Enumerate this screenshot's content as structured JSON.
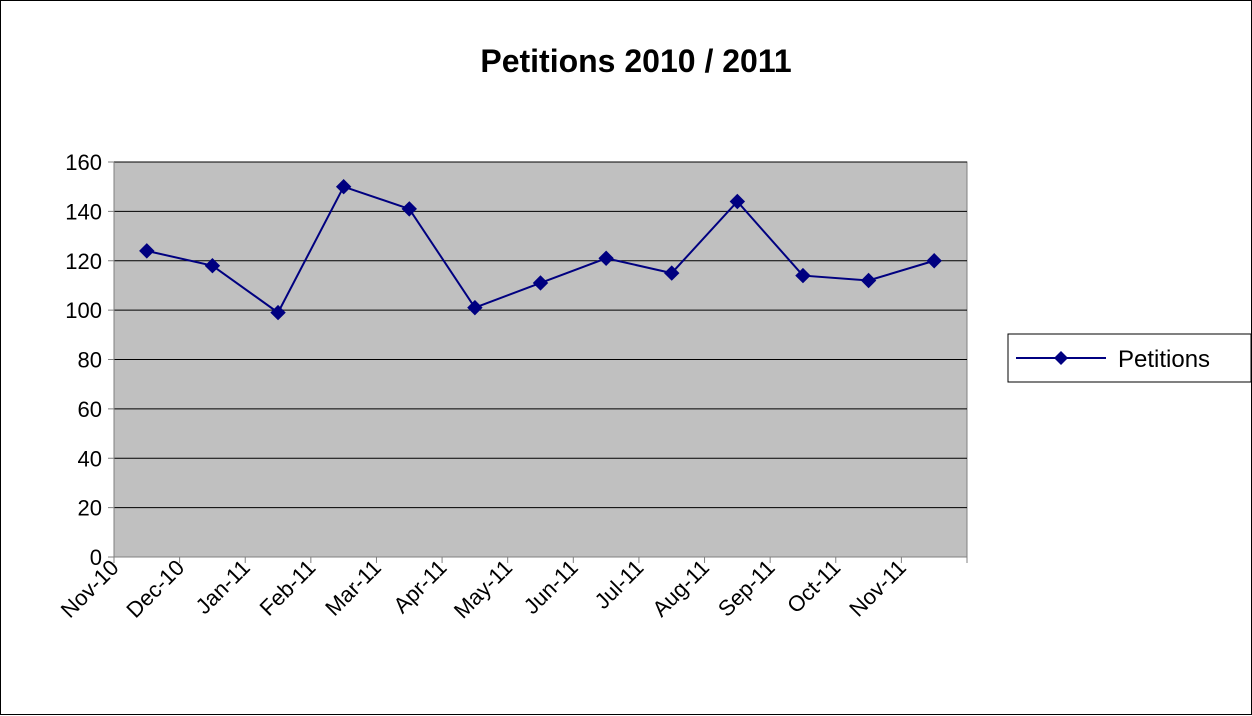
{
  "chart_data": {
    "type": "line",
    "title": "Petitions 2010 / 2011",
    "xlabel": "",
    "ylabel": "",
    "categories": [
      "Nov-10",
      "Dec-10",
      "Jan-11",
      "Feb-11",
      "Mar-11",
      "Apr-11",
      "May-11",
      "Jun-11",
      "Jul-11",
      "Aug-11",
      "Sep-11",
      "Oct-11",
      "Nov-11"
    ],
    "series": [
      {
        "name": "Petitions",
        "values": [
          124,
          118,
          99,
          150,
          141,
          101,
          111,
          121,
          115,
          144,
          114,
          112,
          120
        ],
        "color": "#000080",
        "marker": "diamond"
      }
    ],
    "ylim": [
      0,
      160
    ],
    "yticks": [
      0,
      20,
      40,
      60,
      80,
      100,
      120,
      140,
      160
    ],
    "grid": true,
    "plot_background": "#c0c0c0",
    "legend": "right"
  }
}
